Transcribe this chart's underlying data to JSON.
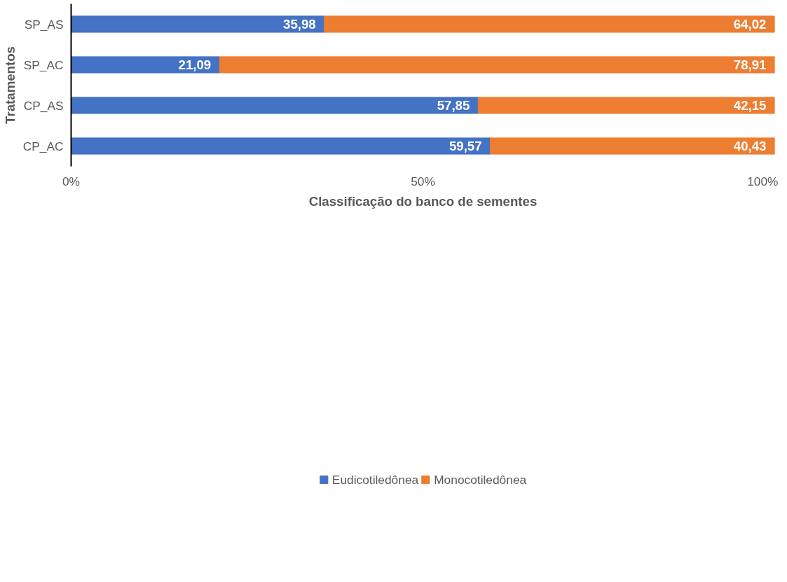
{
  "chart_data": {
    "type": "bar",
    "orientation": "horizontal",
    "stacked": true,
    "xlabel": "Classificação do banco de sementes",
    "ylabel": "Tratamentos",
    "categories": [
      "SP_AS",
      "SP_AC",
      "CP_AS",
      "CP_AC"
    ],
    "series": [
      {
        "name": "Eudicotiledônea",
        "color": "#4472c4",
        "values": [
          35.98,
          21.09,
          57.85,
          59.57
        ],
        "value_labels": [
          "35,98",
          "21,09",
          "57,85",
          "59,57"
        ]
      },
      {
        "name": "Monocotiledônea",
        "color": "#ed7d31",
        "values": [
          64.02,
          78.91,
          42.15,
          40.43
        ],
        "value_labels": [
          "64,02",
          "78,91",
          "42,15",
          "40,43"
        ]
      }
    ],
    "xlim": [
      0,
      100
    ],
    "xticks": [
      {
        "value": 0,
        "label": "0%"
      },
      {
        "value": 50,
        "label": "50%"
      },
      {
        "value": 100,
        "label": "100%"
      }
    ],
    "grid": false,
    "legend": "bottom"
  }
}
